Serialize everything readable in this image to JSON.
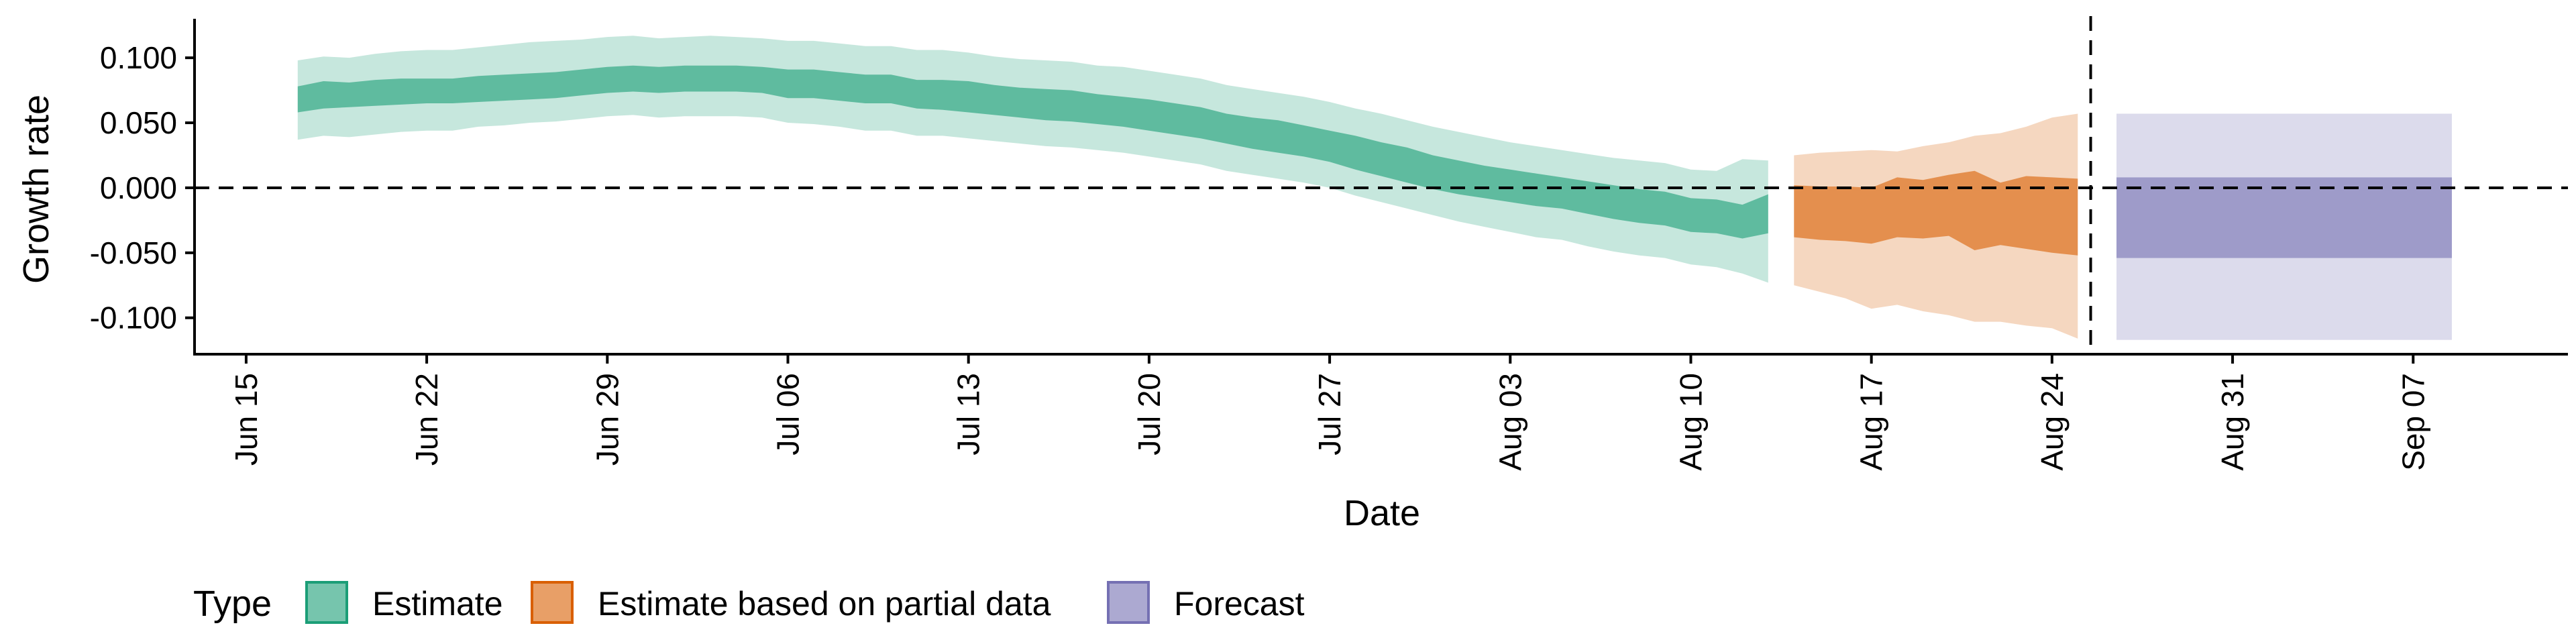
{
  "chart_data": {
    "type": "area",
    "xlabel": "Date",
    "ylabel": "Growth rate",
    "x_ticks": [
      "Jun 15",
      "Jun 22",
      "Jun 29",
      "Jul 06",
      "Jul 13",
      "Jul 20",
      "Jul 27",
      "Aug 03",
      "Aug 10",
      "Aug 17",
      "Aug 24",
      "Aug 31",
      "Sep 07"
    ],
    "x_tick_day_offsets": [
      0,
      7,
      14,
      21,
      28,
      35,
      42,
      49,
      56,
      63,
      70,
      77,
      84
    ],
    "y_ticks": [
      0.1,
      0.05,
      0.0,
      -0.05,
      -0.1
    ],
    "y_tick_labels": [
      "0.100",
      "0.050",
      "0.000",
      "-0.050",
      "-0.100"
    ],
    "ylim": [
      -0.128,
      0.13
    ],
    "xlim_day_offsets": [
      -2,
      90
    ],
    "reference_line_y": 0.0,
    "vertical_line_day": 71.5,
    "legend": {
      "title": "Type",
      "position": "bottom-left",
      "items": [
        {
          "label": "Estimate",
          "color": "#1b9e77"
        },
        {
          "label": "Estimate based on partial data",
          "color": "#d95f02"
        },
        {
          "label": "Forecast",
          "color": "#7570b3"
        }
      ]
    },
    "colors": {
      "estimate": "#1b9e77",
      "partial": "#d95f02",
      "forecast": "#7570b3"
    },
    "series": [
      {
        "type_label": "Estimate",
        "x": [
          "Jun 17",
          "Jun 18",
          "Jun 19",
          "Jun 20",
          "Jun 21",
          "Jun 22",
          "Jun 23",
          "Jun 24",
          "Jun 25",
          "Jun 26",
          "Jun 27",
          "Jun 28",
          "Jun 29",
          "Jun 30",
          "Jul 01",
          "Jul 02",
          "Jul 03",
          "Jul 04",
          "Jul 05",
          "Jul 06",
          "Jul 07",
          "Jul 08",
          "Jul 09",
          "Jul 10",
          "Jul 11",
          "Jul 12",
          "Jul 13",
          "Jul 14",
          "Jul 15",
          "Jul 16",
          "Jul 17",
          "Jul 18",
          "Jul 19",
          "Jul 20",
          "Jul 21",
          "Jul 22",
          "Jul 23",
          "Jul 24",
          "Jul 25",
          "Jul 26",
          "Jul 27",
          "Jul 28",
          "Jul 29",
          "Jul 30",
          "Jul 31",
          "Aug 01",
          "Aug 02",
          "Aug 03",
          "Aug 04",
          "Aug 05",
          "Aug 06",
          "Aug 07",
          "Aug 08",
          "Aug 09",
          "Aug 10",
          "Aug 11",
          "Aug 12",
          "Aug 13"
        ],
        "day": [
          2,
          3,
          4,
          5,
          6,
          7,
          8,
          9,
          10,
          11,
          12,
          13,
          14,
          15,
          16,
          17,
          18,
          19,
          20,
          21,
          22,
          23,
          24,
          25,
          26,
          27,
          28,
          29,
          30,
          31,
          32,
          33,
          34,
          35,
          36,
          37,
          38,
          39,
          40,
          41,
          42,
          43,
          44,
          45,
          46,
          47,
          48,
          49,
          50,
          51,
          52,
          53,
          54,
          55,
          56,
          57,
          58,
          59
        ],
        "median": [
          0.068,
          0.072,
          0.071,
          0.073,
          0.074,
          0.074,
          0.074,
          0.076,
          0.077,
          0.078,
          0.079,
          0.081,
          0.083,
          0.084,
          0.083,
          0.084,
          0.084,
          0.084,
          0.083,
          0.08,
          0.08,
          0.078,
          0.076,
          0.076,
          0.072,
          0.072,
          0.07,
          0.067,
          0.065,
          0.064,
          0.063,
          0.06,
          0.058,
          0.056,
          0.053,
          0.05,
          0.045,
          0.042,
          0.039,
          0.036,
          0.032,
          0.027,
          0.022,
          0.018,
          0.012,
          0.008,
          0.004,
          0.001,
          -0.002,
          -0.004,
          -0.007,
          -0.011,
          -0.014,
          -0.016,
          -0.021,
          -0.022,
          -0.026,
          -0.02
        ],
        "lower_50": [
          0.058,
          0.061,
          0.062,
          0.063,
          0.064,
          0.065,
          0.065,
          0.066,
          0.067,
          0.068,
          0.069,
          0.071,
          0.073,
          0.074,
          0.073,
          0.074,
          0.074,
          0.074,
          0.073,
          0.069,
          0.069,
          0.067,
          0.065,
          0.065,
          0.061,
          0.06,
          0.058,
          0.056,
          0.054,
          0.052,
          0.051,
          0.049,
          0.047,
          0.044,
          0.041,
          0.038,
          0.034,
          0.03,
          0.027,
          0.024,
          0.02,
          0.014,
          0.009,
          0.004,
          -0.001,
          -0.005,
          -0.008,
          -0.011,
          -0.014,
          -0.016,
          -0.02,
          -0.024,
          -0.027,
          -0.029,
          -0.034,
          -0.035,
          -0.039,
          -0.035
        ],
        "upper_50": [
          0.078,
          0.082,
          0.081,
          0.083,
          0.084,
          0.084,
          0.084,
          0.086,
          0.087,
          0.088,
          0.089,
          0.091,
          0.093,
          0.094,
          0.093,
          0.094,
          0.094,
          0.094,
          0.093,
          0.091,
          0.091,
          0.089,
          0.087,
          0.087,
          0.083,
          0.083,
          0.082,
          0.079,
          0.077,
          0.076,
          0.075,
          0.072,
          0.07,
          0.068,
          0.065,
          0.062,
          0.057,
          0.054,
          0.052,
          0.048,
          0.044,
          0.04,
          0.035,
          0.031,
          0.025,
          0.021,
          0.017,
          0.014,
          0.011,
          0.008,
          0.005,
          0.002,
          -0.001,
          -0.003,
          -0.008,
          -0.009,
          -0.013,
          -0.005
        ],
        "lower_90": [
          0.037,
          0.04,
          0.039,
          0.041,
          0.043,
          0.044,
          0.044,
          0.047,
          0.048,
          0.05,
          0.051,
          0.053,
          0.055,
          0.056,
          0.054,
          0.055,
          0.055,
          0.055,
          0.054,
          0.05,
          0.049,
          0.047,
          0.044,
          0.044,
          0.04,
          0.04,
          0.038,
          0.036,
          0.034,
          0.032,
          0.031,
          0.029,
          0.027,
          0.024,
          0.021,
          0.018,
          0.013,
          0.01,
          0.007,
          0.004,
          0.0,
          -0.006,
          -0.011,
          -0.016,
          -0.021,
          -0.026,
          -0.03,
          -0.034,
          -0.038,
          -0.04,
          -0.045,
          -0.049,
          -0.052,
          -0.054,
          -0.059,
          -0.061,
          -0.066,
          -0.073
        ],
        "upper_90": [
          0.098,
          0.101,
          0.1,
          0.103,
          0.105,
          0.106,
          0.106,
          0.108,
          0.11,
          0.112,
          0.113,
          0.114,
          0.116,
          0.117,
          0.115,
          0.116,
          0.117,
          0.116,
          0.115,
          0.113,
          0.113,
          0.111,
          0.109,
          0.109,
          0.106,
          0.106,
          0.104,
          0.101,
          0.099,
          0.098,
          0.097,
          0.094,
          0.093,
          0.09,
          0.087,
          0.084,
          0.079,
          0.076,
          0.073,
          0.07,
          0.066,
          0.061,
          0.057,
          0.052,
          0.047,
          0.043,
          0.039,
          0.035,
          0.032,
          0.029,
          0.026,
          0.023,
          0.021,
          0.019,
          0.014,
          0.013,
          0.022,
          0.021
        ]
      },
      {
        "type_label": "Estimate based on partial data",
        "x": [
          "Aug 14",
          "Aug 15",
          "Aug 16",
          "Aug 17",
          "Aug 18",
          "Aug 19",
          "Aug 20",
          "Aug 21",
          "Aug 22",
          "Aug 23",
          "Aug 24",
          "Aug 25"
        ],
        "day": [
          60,
          61,
          62,
          63,
          64,
          65,
          66,
          67,
          68,
          69,
          70,
          71
        ],
        "median": [
          -0.018,
          -0.019,
          -0.02,
          -0.021,
          -0.015,
          -0.017,
          -0.014,
          -0.018,
          -0.016,
          -0.017,
          -0.018,
          -0.02
        ],
        "lower_50": [
          -0.038,
          -0.04,
          -0.041,
          -0.043,
          -0.038,
          -0.039,
          -0.037,
          -0.048,
          -0.044,
          -0.047,
          -0.05,
          -0.052
        ],
        "upper_50": [
          0.002,
          0.001,
          0.001,
          0.0,
          0.008,
          0.006,
          0.01,
          0.013,
          0.004,
          0.009,
          0.008,
          0.007
        ],
        "lower_90": [
          -0.075,
          -0.08,
          -0.085,
          -0.093,
          -0.09,
          -0.095,
          -0.098,
          -0.103,
          -0.103,
          -0.106,
          -0.108,
          -0.116
        ],
        "upper_90": [
          0.025,
          0.027,
          0.028,
          0.029,
          0.028,
          0.032,
          0.035,
          0.04,
          0.042,
          0.047,
          0.054,
          0.057
        ]
      },
      {
        "type_label": "Forecast",
        "x_start": "Aug 27",
        "x_end": "Sep 08",
        "day_start": 72.5,
        "day_end": 85.5,
        "lower_50": -0.054,
        "upper_50": 0.008,
        "lower_90": -0.117,
        "upper_90": 0.057
      }
    ]
  }
}
